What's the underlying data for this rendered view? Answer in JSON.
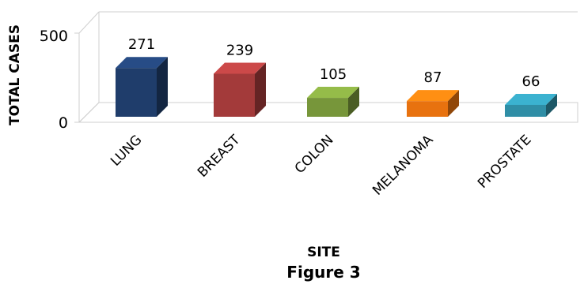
{
  "chart_data": {
    "type": "bar",
    "categories": [
      "LUNG",
      "BREAST",
      "COLON",
      "MELANOMA",
      "PROSTATE"
    ],
    "values": [
      271,
      239,
      105,
      87,
      66
    ],
    "data_labels": [
      "271",
      "239",
      "105",
      "87",
      "66"
    ],
    "xlabel": "SITE",
    "ylabel": "TOTAL CASES",
    "ylim": [
      0,
      500
    ],
    "yticks": [
      "0",
      "500"
    ],
    "grid": true,
    "legend": "none",
    "style": "3d-column"
  },
  "colors": {
    "LUNG": "#1f3d6b",
    "BREAST": "#a33a3a",
    "COLON": "#77963a",
    "MELANOMA": "#e8720f",
    "PROSTATE": "#2f8ea6"
  },
  "caption": "Figure 3"
}
